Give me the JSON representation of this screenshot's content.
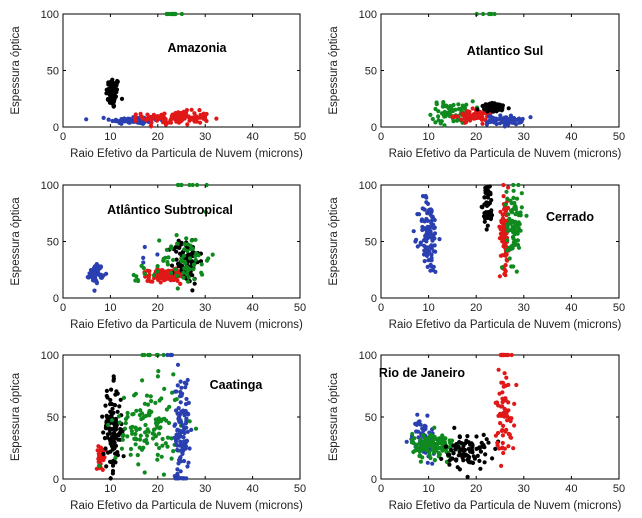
{
  "chart_data": [
    {
      "type": "scatter",
      "title": "Amazonia",
      "xlabel": "Raio Efetivo da Particula de Nuvem (microns)",
      "ylabel": "Espessura óptica",
      "xlim": [
        0,
        50
      ],
      "ylim": [
        0,
        100
      ],
      "xticks": [
        "0",
        "10",
        "20",
        "30",
        "40",
        "50"
      ],
      "yticks": [
        "0",
        "50",
        "100"
      ],
      "series": [
        {
          "color": "#000000",
          "clusters": [
            {
              "cx": 10.5,
              "sx": 0.7,
              "cy": 30,
              "sy": 7,
              "n": 70
            }
          ]
        },
        {
          "color": "#2a3fb0",
          "clusters": [
            {
              "cx": 15,
              "sx": 2.5,
              "cy": 6,
              "sy": 1.8,
              "n": 90
            }
          ]
        },
        {
          "color": "#e01818",
          "clusters": [
            {
              "cx": 24,
              "sx": 3.5,
              "cy": 8,
              "sy": 3,
              "n": 130
            }
          ]
        },
        {
          "color": "#0f8a1e",
          "clusters": [
            {
              "cx": 23,
              "sx": 1.0,
              "cy": 100,
              "sy": 0,
              "n": 12
            }
          ]
        }
      ]
    },
    {
      "type": "scatter",
      "title": "Atlantico Sul",
      "xlabel": "Raio Efetivo da Particula de Nuvem (microns)",
      "ylabel": "Espessura óptica",
      "xlim": [
        0,
        50
      ],
      "ylim": [
        0,
        100
      ],
      "xticks": [
        "0",
        "10",
        "20",
        "30",
        "40",
        "50"
      ],
      "yticks": [
        "0",
        "50",
        "100"
      ],
      "series": [
        {
          "color": "#0f8a1e",
          "clusters": [
            {
              "cx": 15,
              "sx": 2.2,
              "cy": 13,
              "sy": 5,
              "n": 70
            },
            {
              "cx": 22,
              "sx": 1.0,
              "cy": 100,
              "sy": 0,
              "n": 6
            }
          ]
        },
        {
          "color": "#e01818",
          "clusters": [
            {
              "cx": 19.5,
              "sx": 2.0,
              "cy": 10,
              "sy": 2.5,
              "n": 70
            }
          ]
        },
        {
          "color": "#000000",
          "clusters": [
            {
              "cx": 24,
              "sx": 1.6,
              "cy": 17,
              "sy": 2.0,
              "n": 60
            }
          ]
        },
        {
          "color": "#2a3fb0",
          "clusters": [
            {
              "cx": 26,
              "sx": 1.8,
              "cy": 6,
              "sy": 2.0,
              "n": 70
            }
          ]
        }
      ]
    },
    {
      "type": "scatter",
      "title": "Atlântico Subtropical",
      "xlabel": "Raio Efetivo da Particula de Nuvem (microns)",
      "ylabel": "Espessura óptica",
      "xlim": [
        0,
        50
      ],
      "ylim": [
        0,
        100
      ],
      "xticks": [
        "0",
        "10",
        "20",
        "30",
        "40",
        "50"
      ],
      "yticks": [
        "0",
        "50",
        "100"
      ],
      "series": [
        {
          "color": "#2a3fb0",
          "clusters": [
            {
              "cx": 7,
              "sx": 0.7,
              "cy": 22,
              "sy": 4,
              "n": 60
            },
            {
              "cx": 17,
              "sx": 1.0,
              "cy": 40,
              "sy": 8,
              "n": 4
            }
          ]
        },
        {
          "color": "#e01818",
          "clusters": [
            {
              "cx": 22,
              "sx": 2.0,
              "cy": 20,
              "sy": 2.5,
              "n": 150
            }
          ]
        },
        {
          "color": "#000000",
          "clusters": [
            {
              "cx": 26,
              "sx": 1.4,
              "cy": 33,
              "sy": 10,
              "n": 90
            }
          ]
        },
        {
          "color": "#0f8a1e",
          "clusters": [
            {
              "cx": 26,
              "sx": 2.5,
              "cy": 35,
              "sy": 12,
              "n": 60
            },
            {
              "cx": 16,
              "sx": 3.0,
              "cy": 25,
              "sy": 8,
              "n": 10
            },
            {
              "cx": 27,
              "sx": 1.5,
              "cy": 100,
              "sy": 0,
              "n": 8
            }
          ]
        }
      ]
    },
    {
      "type": "scatter",
      "title": "Cerrado",
      "xlabel": "Raio Efetivo da Particula de Nuvem (microns)",
      "ylabel": "Espessura óptica",
      "xlim": [
        0,
        50
      ],
      "ylim": [
        0,
        100
      ],
      "xticks": [
        "0",
        "10",
        "20",
        "30",
        "40",
        "50"
      ],
      "yticks": [
        "0",
        "50",
        "100"
      ],
      "series": [
        {
          "color": "#2a3fb0",
          "clusters": [
            {
              "cx": 10,
              "sx": 1.0,
              "cy": 55,
              "sy": 17,
              "n": 110
            }
          ]
        },
        {
          "color": "#000000",
          "clusters": [
            {
              "cx": 22.5,
              "sx": 0.5,
              "cy": 82,
              "sy": 10,
              "n": 55
            }
          ]
        },
        {
          "color": "#e01818",
          "clusters": [
            {
              "cx": 26,
              "sx": 0.5,
              "cy": 62,
              "sy": 18,
              "n": 90
            }
          ]
        },
        {
          "color": "#0f8a1e",
          "clusters": [
            {
              "cx": 28,
              "sx": 0.8,
              "cy": 65,
              "sy": 18,
              "n": 80
            }
          ]
        }
      ]
    },
    {
      "type": "scatter",
      "title": "Caatinga",
      "xlabel": "Raio Efetivo da Particula de Nuvem (microns)",
      "ylabel": "Espessura óptica",
      "xlim": [
        0,
        50
      ],
      "ylim": [
        0,
        100
      ],
      "xticks": [
        "0",
        "10",
        "20",
        "30",
        "40",
        "50"
      ],
      "yticks": [
        "0",
        "50",
        "100"
      ],
      "series": [
        {
          "color": "#e01818",
          "clusters": [
            {
              "cx": 8,
              "sx": 0.5,
              "cy": 18,
              "sy": 4,
              "n": 35
            }
          ]
        },
        {
          "color": "#000000",
          "clusters": [
            {
              "cx": 10.5,
              "sx": 1.0,
              "cy": 40,
              "sy": 17,
              "n": 120
            }
          ]
        },
        {
          "color": "#0f8a1e",
          "clusters": [
            {
              "cx": 18,
              "sx": 3.5,
              "cy": 42,
              "sy": 17,
              "n": 130
            },
            {
              "cx": 19,
              "sx": 1.5,
              "cy": 100,
              "sy": 0,
              "n": 8
            }
          ]
        },
        {
          "color": "#2a3fb0",
          "clusters": [
            {
              "cx": 25,
              "sx": 0.8,
              "cy": 40,
              "sy": 22,
              "n": 110
            },
            {
              "cx": 23,
              "sx": 0.6,
              "cy": 100,
              "sy": 0,
              "n": 5
            }
          ]
        }
      ]
    },
    {
      "type": "scatter",
      "title": "Rio de Janeiro",
      "xlabel": "Raio Efetivo da Particula de Nuvem (microns)",
      "ylabel": "Espessura óptica",
      "xlim": [
        0,
        50
      ],
      "ylim": [
        0,
        100
      ],
      "xticks": [
        "0",
        "10",
        "20",
        "30",
        "40",
        "50"
      ],
      "yticks": [
        "0",
        "50",
        "100"
      ],
      "series": [
        {
          "color": "#2a3fb0",
          "clusters": [
            {
              "cx": 9,
              "sx": 1.2,
              "cy": 32,
              "sy": 8,
              "n": 70
            }
          ]
        },
        {
          "color": "#0f8a1e",
          "clusters": [
            {
              "cx": 11,
              "sx": 2.2,
              "cy": 27,
              "sy": 5,
              "n": 130
            }
          ]
        },
        {
          "color": "#000000",
          "clusters": [
            {
              "cx": 18,
              "sx": 2.3,
              "cy": 22,
              "sy": 7,
              "n": 90
            }
          ]
        },
        {
          "color": "#e01818",
          "clusters": [
            {
              "cx": 26,
              "sx": 1.0,
              "cy": 55,
              "sy": 18,
              "n": 70
            },
            {
              "cx": 26,
              "sx": 1.3,
              "cy": 100,
              "sy": 0,
              "n": 15
            }
          ]
        }
      ]
    }
  ]
}
